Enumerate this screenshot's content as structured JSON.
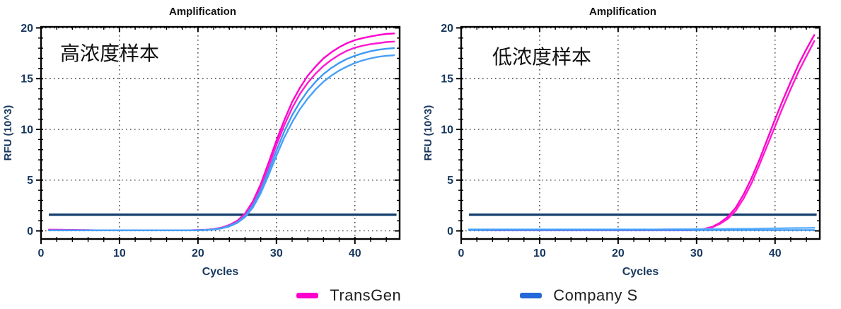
{
  "legend": {
    "items": [
      {
        "label": "TransGen",
        "color": "#ff00cc"
      },
      {
        "label": "Company S",
        "color": "#2468d9"
      }
    ]
  },
  "chart_data": [
    {
      "type": "line",
      "title": "Amplification",
      "annotation": "高浓度样本",
      "xlabel": "Cycles",
      "ylabel": "RFU (10^3)",
      "xlim": [
        0,
        45.7
      ],
      "ylim": [
        -0.8,
        20.1
      ],
      "x_ticks": [
        0,
        10,
        20,
        30,
        40
      ],
      "y_ticks": [
        0,
        5,
        10,
        15,
        20
      ],
      "x_minor_step": 2,
      "y_minor_step": 1,
      "grid": "dotted",
      "x_start_cycle": 1,
      "threshold": {
        "value": 1.6,
        "x_range": [
          1,
          45.3
        ],
        "color": "#16406e"
      },
      "series": [
        {
          "name": "TransGen replicate 1",
          "group": "TransGen",
          "color": "#ff00cc",
          "values": [
            0.12,
            0.11,
            0.1,
            0.09,
            0.08,
            0.07,
            0.06,
            0.06,
            0.05,
            0.05,
            0.05,
            0.05,
            0.05,
            0.05,
            0.05,
            0.05,
            0.05,
            0.06,
            0.06,
            0.07,
            0.1,
            0.18,
            0.32,
            0.58,
            1.0,
            1.7,
            2.9,
            4.6,
            6.7,
            8.9,
            10.9,
            12.7,
            14.1,
            15.3,
            16.2,
            17.0,
            17.6,
            18.1,
            18.5,
            18.8,
            19.0,
            19.15,
            19.3,
            19.4,
            19.45
          ]
        },
        {
          "name": "TransGen replicate 2",
          "group": "TransGen",
          "color": "#ff1ad0",
          "values": [
            0.1,
            0.1,
            0.09,
            0.08,
            0.07,
            0.06,
            0.06,
            0.05,
            0.05,
            0.05,
            0.05,
            0.05,
            0.05,
            0.05,
            0.05,
            0.05,
            0.05,
            0.05,
            0.06,
            0.07,
            0.1,
            0.17,
            0.3,
            0.55,
            0.95,
            1.62,
            2.75,
            4.35,
            6.35,
            8.45,
            10.4,
            12.1,
            13.5,
            14.6,
            15.5,
            16.25,
            16.85,
            17.35,
            17.75,
            18.05,
            18.25,
            18.4,
            18.5,
            18.6,
            18.65
          ]
        },
        {
          "name": "Company S replicate 1",
          "group": "Company S",
          "color": "#3d9af5",
          "values": [
            0.05,
            0.05,
            0.05,
            0.05,
            0.05,
            0.05,
            0.05,
            0.05,
            0.05,
            0.05,
            0.05,
            0.05,
            0.05,
            0.05,
            0.05,
            0.05,
            0.05,
            0.05,
            0.06,
            0.06,
            0.09,
            0.15,
            0.27,
            0.5,
            0.85,
            1.45,
            2.5,
            4.0,
            5.9,
            7.9,
            9.8,
            11.4,
            12.7,
            13.8,
            14.7,
            15.45,
            16.05,
            16.55,
            16.95,
            17.25,
            17.5,
            17.7,
            17.85,
            17.95,
            18.0
          ]
        },
        {
          "name": "Company S replicate 2",
          "group": "Company S",
          "color": "#49a0f7",
          "values": [
            0.05,
            0.05,
            0.05,
            0.05,
            0.05,
            0.05,
            0.05,
            0.05,
            0.05,
            0.05,
            0.05,
            0.05,
            0.05,
            0.05,
            0.05,
            0.05,
            0.05,
            0.05,
            0.05,
            0.06,
            0.08,
            0.13,
            0.24,
            0.44,
            0.78,
            1.35,
            2.3,
            3.7,
            5.5,
            7.4,
            9.2,
            10.7,
            12.0,
            13.05,
            13.95,
            14.7,
            15.3,
            15.8,
            16.2,
            16.55,
            16.8,
            17.0,
            17.15,
            17.25,
            17.3
          ]
        }
      ]
    },
    {
      "type": "line",
      "title": "Amplification",
      "annotation": "低浓度样本",
      "xlabel": "Cycles",
      "ylabel": "RFU (10^3)",
      "xlim": [
        0,
        45.7
      ],
      "ylim": [
        -0.8,
        20.1
      ],
      "x_ticks": [
        0,
        10,
        20,
        30,
        40
      ],
      "y_ticks": [
        0,
        5,
        10,
        15,
        20
      ],
      "x_minor_step": 2,
      "y_minor_step": 1,
      "grid": "dotted",
      "x_start_cycle": 1,
      "threshold": {
        "value": 1.6,
        "x_range": [
          1,
          45.3
        ],
        "color": "#16406e"
      },
      "series": [
        {
          "name": "TransGen replicate 1",
          "group": "TransGen",
          "color": "#ff00cc",
          "values": [
            0.1,
            0.09,
            0.08,
            0.07,
            0.06,
            0.06,
            0.05,
            0.05,
            0.05,
            0.05,
            0.05,
            0.05,
            0.05,
            0.05,
            0.05,
            0.05,
            0.05,
            0.05,
            0.05,
            0.05,
            0.05,
            0.05,
            0.05,
            0.05,
            0.05,
            0.05,
            0.05,
            0.05,
            0.07,
            0.1,
            0.2,
            0.4,
            0.8,
            1.4,
            2.3,
            3.6,
            5.2,
            7.0,
            9.0,
            11.0,
            12.9,
            14.7,
            16.4,
            17.9,
            19.3
          ]
        },
        {
          "name": "TransGen replicate 2",
          "group": "TransGen",
          "color": "#ff1ad0",
          "values": [
            0.09,
            0.08,
            0.08,
            0.07,
            0.06,
            0.05,
            0.05,
            0.05,
            0.05,
            0.05,
            0.05,
            0.05,
            0.05,
            0.05,
            0.05,
            0.05,
            0.05,
            0.05,
            0.05,
            0.05,
            0.05,
            0.05,
            0.05,
            0.05,
            0.05,
            0.05,
            0.05,
            0.05,
            0.06,
            0.09,
            0.18,
            0.35,
            0.7,
            1.2,
            2.0,
            3.2,
            4.7,
            6.5,
            8.4,
            10.3,
            12.2,
            14.0,
            15.7,
            17.2,
            18.7
          ]
        },
        {
          "name": "Company S replicate 1",
          "group": "Company S",
          "color": "#5fb0ff",
          "values": [
            0.15,
            0.15,
            0.15,
            0.15,
            0.15,
            0.15,
            0.15,
            0.15,
            0.15,
            0.15,
            0.15,
            0.15,
            0.15,
            0.15,
            0.15,
            0.15,
            0.15,
            0.15,
            0.15,
            0.15,
            0.15,
            0.15,
            0.15,
            0.15,
            0.15,
            0.16,
            0.16,
            0.17,
            0.17,
            0.18,
            0.18,
            0.19,
            0.19,
            0.2,
            0.2,
            0.21,
            0.22,
            0.23,
            0.24,
            0.25,
            0.26,
            0.27,
            0.28,
            0.29,
            0.3
          ]
        },
        {
          "name": "Company S replicate 2",
          "group": "Company S",
          "color": "#3d9af5",
          "values": [
            0.08,
            0.08,
            0.08,
            0.08,
            0.08,
            0.08,
            0.08,
            0.08,
            0.08,
            0.08,
            0.08,
            0.08,
            0.08,
            0.08,
            0.08,
            0.08,
            0.08,
            0.08,
            0.08,
            0.08,
            0.08,
            0.08,
            0.08,
            0.08,
            0.08,
            0.08,
            0.08,
            0.08,
            0.08,
            0.08,
            0.08,
            0.08,
            0.08,
            0.08,
            0.08,
            0.08,
            0.08,
            0.08,
            0.08,
            0.08,
            0.08,
            0.08,
            0.08,
            0.08,
            0.08
          ]
        }
      ]
    }
  ],
  "style_tokens": {
    "axis_label_color": "#17375e",
    "tick_label_color": "#17375e",
    "title_color": "#111111",
    "annotation_color": "#111111",
    "frame_color": "#000000",
    "grid_color": "#2b2b2b"
  }
}
